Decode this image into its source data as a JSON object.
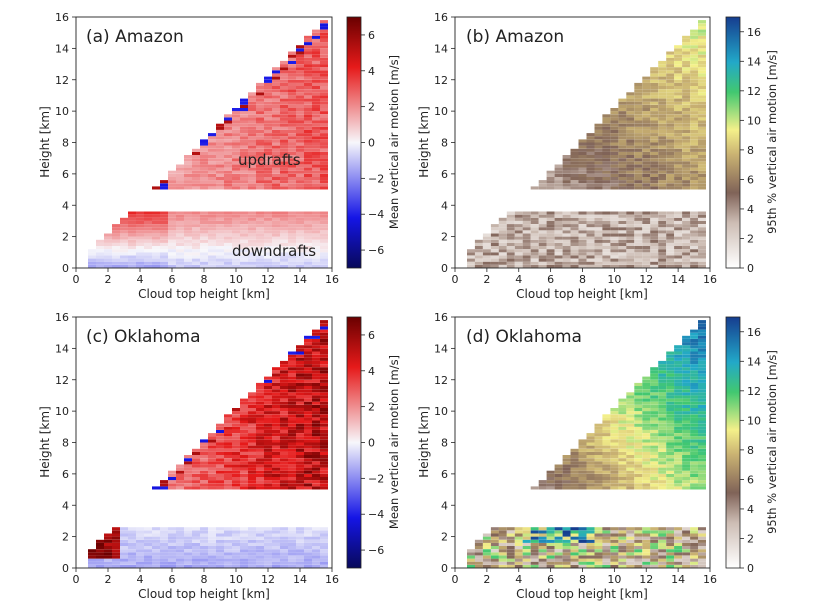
{
  "colorbars": {
    "mean": {
      "label": "Mean vertical air motion [m/s]",
      "ticks": [
        "6",
        "4",
        "2",
        "0",
        "−2",
        "−4",
        "−6"
      ],
      "range": [
        -7,
        7
      ]
    },
    "p95": {
      "label": "95th % vertical air motion [m/s]",
      "ticks": [
        "16",
        "14",
        "12",
        "10",
        "8",
        "6",
        "4",
        "2",
        "0"
      ],
      "range": [
        0,
        17
      ]
    }
  },
  "chart_data": [
    {
      "type": "heatmap",
      "panel_label": "(a) Amazon",
      "variable": "mean",
      "xlabel": "Cloud top height [km]",
      "ylabel": "Height [km]",
      "xlim": [
        0,
        16
      ],
      "ylim": [
        0,
        16
      ],
      "x_ticks": [
        "0",
        "2",
        "4",
        "6",
        "8",
        "10",
        "12",
        "14",
        "16"
      ],
      "y_ticks": [
        "0",
        "2",
        "4",
        "6",
        "8",
        "10",
        "12",
        "14",
        "16"
      ],
      "annotations": [
        {
          "text": "updrafts",
          "x": 10.3,
          "y": 6.7
        },
        {
          "text": "downdrafts",
          "x": 13.0,
          "y": 1.1
        }
      ],
      "lower_layer": {
        "top_km": 3.6,
        "bottom_value": -1.2,
        "top_value": 2.8
      },
      "upper_layer": {
        "bottom_km": 5.0,
        "value_range": [
          0.8,
          3.5
        ]
      }
    },
    {
      "type": "heatmap",
      "panel_label": "(b) Amazon",
      "variable": "p95",
      "xlabel": "Cloud top height [km]",
      "ylabel": "Height [km]",
      "xlim": [
        0,
        16
      ],
      "ylim": [
        0,
        16
      ],
      "x_ticks": [
        "0",
        "2",
        "4",
        "6",
        "8",
        "10",
        "12",
        "14",
        "16"
      ],
      "y_ticks": [
        "0",
        "2",
        "4",
        "6",
        "8",
        "10",
        "12",
        "14",
        "16"
      ],
      "lower_layer": {
        "top_km": 3.6,
        "value_range": [
          1.5,
          5
        ]
      },
      "upper_layer": {
        "bottom_km": 5.0,
        "value_range": [
          3,
          10
        ]
      }
    },
    {
      "type": "heatmap",
      "panel_label": "(c) Oklahoma",
      "variable": "mean",
      "xlabel": "Cloud top height [km]",
      "ylabel": "Height [km]",
      "xlim": [
        0,
        16
      ],
      "ylim": [
        0,
        16
      ],
      "x_ticks": [
        "0",
        "2",
        "4",
        "6",
        "8",
        "10",
        "12",
        "14",
        "16"
      ],
      "y_ticks": [
        "0",
        "2",
        "4",
        "6",
        "8",
        "10",
        "12",
        "14",
        "16"
      ],
      "lower_layer": {
        "top_km": 2.6,
        "bottom_value": -1.5,
        "top_value": -0.5
      },
      "upper_layer": {
        "bottom_km": 5.0,
        "value_range": [
          0.8,
          6
        ]
      }
    },
    {
      "type": "heatmap",
      "panel_label": "(d) Oklahoma",
      "variable": "p95",
      "xlabel": "Cloud top height [km]",
      "ylabel": "Height [km]",
      "xlim": [
        0,
        16
      ],
      "ylim": [
        0,
        16
      ],
      "x_ticks": [
        "0",
        "2",
        "4",
        "6",
        "8",
        "10",
        "12",
        "14",
        "16"
      ],
      "y_ticks": [
        "0",
        "2",
        "4",
        "6",
        "8",
        "10",
        "12",
        "14",
        "16"
      ],
      "lower_layer": {
        "top_km": 2.6,
        "value_range": [
          2,
          12
        ]
      },
      "upper_layer": {
        "bottom_km": 5.0,
        "value_range": [
          3,
          16
        ]
      }
    }
  ]
}
